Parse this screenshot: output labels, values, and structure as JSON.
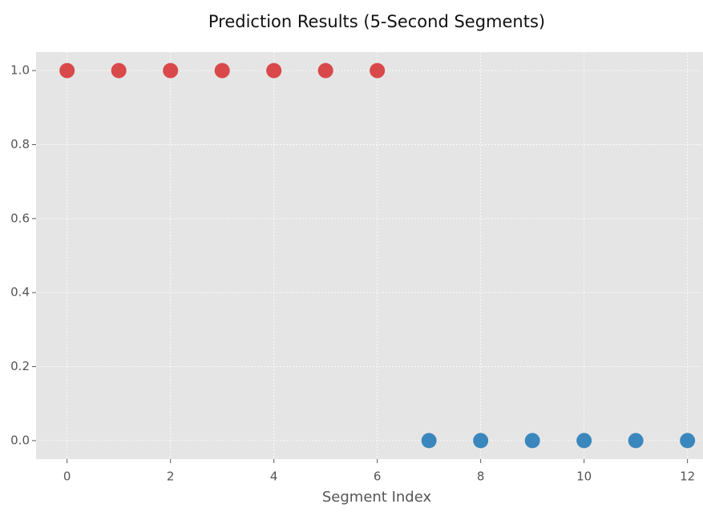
{
  "chart_data": {
    "type": "scatter",
    "title": "Prediction Results (5-Second Segments)",
    "x_label": "Segment Index",
    "series": [
      {
        "color": "#d9484a",
        "x": [
          0,
          1,
          2,
          3,
          4,
          5,
          6
        ],
        "values": [
          1,
          1,
          1,
          1,
          1,
          1,
          1
        ]
      },
      {
        "color": "#3a87bd",
        "x": [
          7,
          8,
          9,
          10,
          11,
          12
        ],
        "values": [
          0,
          0,
          0,
          0,
          0,
          0
        ]
      }
    ],
    "xlim": [
      -0.6,
      12.3
    ],
    "ylim": [
      -0.05,
      1.05
    ],
    "xticks": [
      0,
      2,
      4,
      6,
      8,
      10,
      12
    ],
    "yticks": [
      {
        "value": 0,
        "label": "0.0"
      },
      {
        "value": 0.2,
        "label": "0.2"
      },
      {
        "value": 0.4,
        "label": "0.4"
      },
      {
        "value": 0.6,
        "label": "0.6"
      },
      {
        "value": 0.8,
        "label": "0.8"
      },
      {
        "value": 1,
        "label": "1.0"
      }
    ],
    "grid": true
  }
}
